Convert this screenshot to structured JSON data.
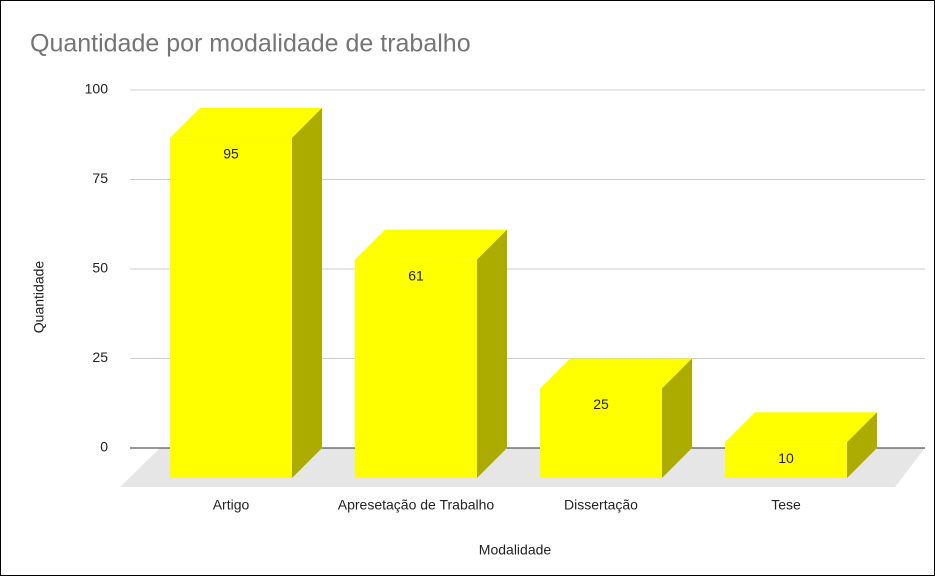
{
  "chart_data": {
    "type": "bar",
    "title": "Quantidade por modalidade de trabalho",
    "x_label": "Modalidade",
    "y_label": "Quantidade",
    "categories": [
      "Artigo",
      "Apresetação de Trabalho",
      "Dissertação",
      "Tese"
    ],
    "values": [
      95,
      61,
      25,
      10
    ],
    "color": "#ffff00",
    "ylim": [
      0,
      100
    ],
    "yticks": [
      0,
      25,
      50,
      75,
      100
    ],
    "grid": true
  }
}
